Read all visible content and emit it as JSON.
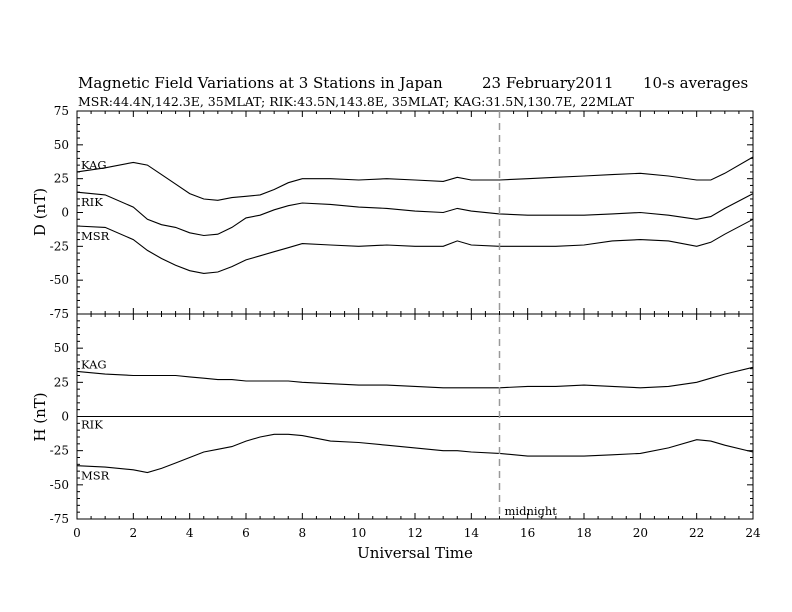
{
  "title": {
    "main": "Magnetic Field Variations at 3 Stations in Japan",
    "date": "23  February2011",
    "avg": "10-s averages",
    "stations": "MSR:44.4N,142.3E, 35MLAT;  RIK:43.5N,143.8E, 35MLAT;  KAG:31.5N,130.7E, 22MLAT"
  },
  "chart_data": [
    {
      "type": "line",
      "ylabel": "D (nT)",
      "ylim": [
        -75,
        75
      ],
      "yticks": [
        -75,
        -50,
        -25,
        0,
        25,
        50,
        75
      ],
      "series": [
        {
          "name": "KAG",
          "x": [
            0,
            1,
            2,
            2.5,
            3,
            3.5,
            4,
            4.5,
            5,
            5.5,
            6,
            6.5,
            7,
            7.5,
            8,
            9,
            10,
            11,
            12,
            13,
            13.5,
            14,
            15,
            16,
            17,
            18,
            19,
            20,
            21,
            22,
            22.5,
            23,
            24
          ],
          "y": [
            30,
            33,
            37,
            35,
            28,
            21,
            14,
            10,
            9,
            11,
            12,
            13,
            17,
            22,
            25,
            25,
            24,
            25,
            24,
            23,
            26,
            24,
            24,
            25,
            26,
            27,
            28,
            29,
            27,
            24,
            24,
            29,
            41
          ]
        },
        {
          "name": "RIK",
          "x": [
            0,
            1,
            2,
            2.5,
            3,
            3.5,
            4,
            4.5,
            5,
            5.5,
            6,
            6.5,
            7,
            7.5,
            8,
            9,
            10,
            11,
            12,
            13,
            13.5,
            14,
            15,
            16,
            17,
            18,
            19,
            20,
            21,
            22,
            22.5,
            23,
            24
          ],
          "y": [
            15,
            13,
            4,
            -5,
            -9,
            -11,
            -15,
            -17,
            -16,
            -11,
            -4,
            -2,
            2,
            5,
            7,
            6,
            4,
            3,
            1,
            0,
            3,
            1,
            -1,
            -2,
            -2,
            -2,
            -1,
            0,
            -2,
            -5,
            -3,
            3,
            14
          ]
        },
        {
          "name": "MSR",
          "x": [
            0,
            1,
            2,
            2.5,
            3,
            3.5,
            4,
            4.5,
            5,
            5.5,
            6,
            6.5,
            7,
            7.5,
            8,
            9,
            10,
            11,
            12,
            13,
            13.5,
            14,
            15,
            16,
            17,
            18,
            19,
            20,
            21,
            22,
            22.5,
            23,
            24
          ],
          "y": [
            -10,
            -11,
            -20,
            -28,
            -34,
            -39,
            -43,
            -45,
            -44,
            -40,
            -35,
            -32,
            -29,
            -26,
            -23,
            -24,
            -25,
            -24,
            -25,
            -25,
            -21,
            -24,
            -25,
            -25,
            -25,
            -24,
            -21,
            -20,
            -21,
            -25,
            -22,
            -16,
            -5
          ]
        }
      ]
    },
    {
      "type": "line",
      "ylabel": "H (nT)",
      "xlabel": "Universal Time",
      "ylim": [
        -75,
        75
      ],
      "yticks": [
        -75,
        -50,
        -25,
        0,
        25,
        50
      ],
      "xlim": [
        0,
        24
      ],
      "xticks": [
        0,
        2,
        4,
        6,
        8,
        10,
        12,
        14,
        16,
        18,
        20,
        22,
        24
      ],
      "annotation": {
        "x": 15,
        "label": "midnight"
      },
      "series": [
        {
          "name": "KAG",
          "x": [
            0,
            1,
            2,
            2.5,
            3,
            3.5,
            4,
            4.5,
            5,
            5.5,
            6,
            6.5,
            7,
            7.5,
            8,
            9,
            10,
            11,
            12,
            13,
            13.5,
            14,
            15,
            16,
            17,
            18,
            19,
            20,
            21,
            22,
            22.5,
            23,
            24
          ],
          "y": [
            33,
            31,
            30,
            30,
            30,
            30,
            29,
            28,
            27,
            27,
            26,
            26,
            26,
            26,
            25,
            24,
            23,
            23,
            22,
            21,
            21,
            21,
            21,
            22,
            22,
            23,
            22,
            21,
            22,
            25,
            28,
            31,
            36
          ]
        },
        {
          "name": "RIK",
          "x": [
            0,
            24
          ],
          "y": [
            0,
            0
          ]
        },
        {
          "name": "MSR",
          "x": [
            0,
            1,
            2,
            2.5,
            3,
            3.5,
            4,
            4.5,
            5,
            5.5,
            6,
            6.5,
            7,
            7.5,
            8,
            9,
            10,
            11,
            12,
            13,
            13.5,
            14,
            15,
            16,
            17,
            18,
            19,
            20,
            21,
            22,
            22.5,
            23,
            24
          ],
          "y": [
            -36,
            -37,
            -39,
            -41,
            -38,
            -34,
            -30,
            -26,
            -24,
            -22,
            -18,
            -15,
            -13,
            -13,
            -14,
            -18,
            -19,
            -21,
            -23,
            -25,
            -25,
            -26,
            -27,
            -29,
            -29,
            -29,
            -28,
            -27,
            -23,
            -17,
            -18,
            -21,
            -26
          ]
        }
      ]
    }
  ]
}
